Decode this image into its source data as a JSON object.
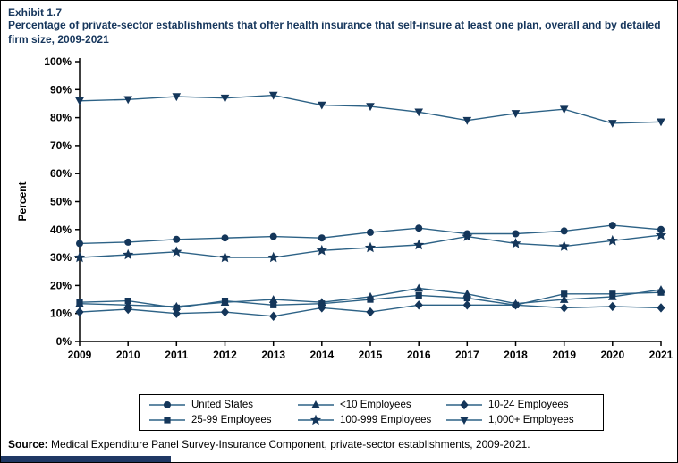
{
  "header": {
    "exhibit": "Exhibit 1.7",
    "title": "Percentage of private-sector establishments that offer health insurance that self-insure at least one plan, overall and by detailed firm size, 2009-2021"
  },
  "theme": {
    "title_color": "#16365c",
    "footer_bar_color": "#1f3864"
  },
  "chart_data": {
    "type": "line",
    "title": "Percentage of private-sector establishments that offer health insurance that self-insure at least one plan, overall and by detailed firm size, 2009-2021",
    "xlabel": "",
    "ylabel": "Percent",
    "x": [
      2009,
      2010,
      2011,
      2012,
      2013,
      2014,
      2015,
      2016,
      2017,
      2018,
      2019,
      2020,
      2021
    ],
    "ylim": [
      0,
      100
    ],
    "ytick_step": 10,
    "ytick_format": "percent",
    "grid": false,
    "legend_position": "bottom",
    "series": [
      {
        "name": "United States",
        "marker": "circle",
        "values": [
          35,
          35.5,
          36.5,
          37,
          37.5,
          37,
          39,
          40.5,
          38.5,
          38.5,
          39.5,
          41.5,
          40
        ]
      },
      {
        "name": "<10 Employees",
        "marker": "triangle",
        "values": [
          13.5,
          13,
          12.5,
          14,
          15,
          14,
          16,
          19,
          17,
          13.5,
          15,
          16,
          18.5
        ]
      },
      {
        "name": "10-24 Employees",
        "marker": "diamond",
        "values": [
          10.5,
          11.5,
          10,
          10.5,
          9,
          12,
          10.5,
          13,
          13,
          13,
          12,
          12.5,
          12
        ]
      },
      {
        "name": "25-99 Employees",
        "marker": "square",
        "values": [
          14,
          14.5,
          12,
          14.5,
          13,
          13.5,
          15,
          16.5,
          15.5,
          13,
          17,
          17,
          17.5
        ]
      },
      {
        "name": "100-999 Employees",
        "marker": "star",
        "values": [
          30,
          31,
          32,
          30,
          30,
          32.5,
          33.5,
          34.5,
          37.5,
          35,
          34,
          36,
          38
        ]
      },
      {
        "name": "1,000+ Employees",
        "marker": "triangle-down",
        "values": [
          86,
          86.5,
          87.5,
          87,
          88,
          84.5,
          84,
          82,
          79,
          81.5,
          83,
          78,
          78.5
        ]
      }
    ],
    "colors": {
      "line": "#2d6286",
      "marker": "#14365a",
      "axis": "#000000"
    }
  },
  "footer": {
    "source_label": "Source:",
    "source_text": " Medical Expenditure Panel Survey-Insurance Component, private-sector establishments, 2009-2021."
  }
}
